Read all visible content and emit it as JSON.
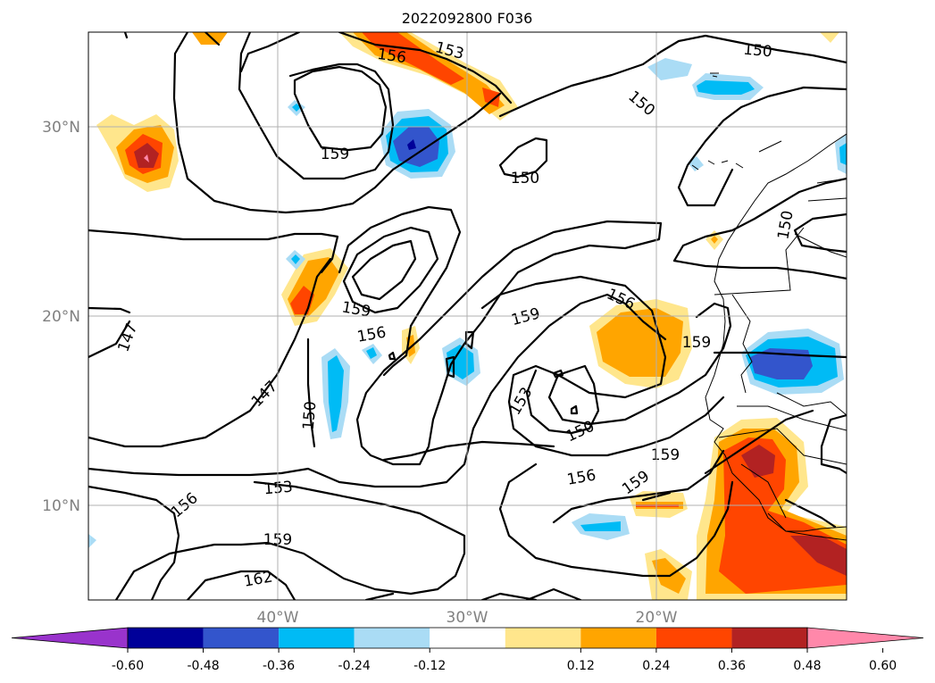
{
  "title": "2022092800 F036",
  "map": {
    "lon_range": [
      -50,
      -10
    ],
    "lat_range": [
      5,
      35
    ],
    "lon_ticks": [
      "40°W",
      "30°W",
      "20°W"
    ],
    "lat_ticks": [
      "30°N",
      "20°N",
      "10°N"
    ],
    "grid": true
  },
  "contour_labels": [
    "150",
    "153",
    "156",
    "159",
    "159",
    "150",
    "150",
    "150",
    "159",
    "156",
    "156",
    "159",
    "147",
    "147",
    "150",
    "159",
    "153",
    "150",
    "156",
    "159",
    "153",
    "156",
    "159",
    "162"
  ],
  "colorbar": {
    "extend": "both",
    "colors": [
      "#9933cc",
      "#000099",
      "#3355cc",
      "#00bbf5",
      "#aadcf5",
      "#ffffff",
      "#ffe68c",
      "#ffa500",
      "#ff4500",
      "#b22222",
      "#ff88aa"
    ],
    "ticks": [
      "-0.60",
      "-0.48",
      "-0.36",
      "-0.24",
      "-0.12",
      "0.12",
      "0.24",
      "0.36",
      "0.48",
      "0.60"
    ]
  }
}
